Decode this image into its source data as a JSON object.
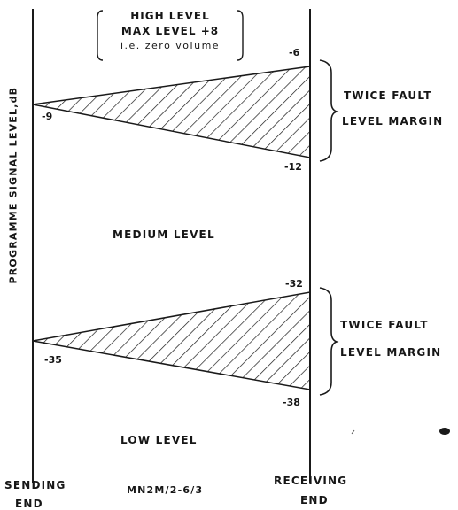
{
  "high_level": {
    "line1": "HIGH LEVEL",
    "line2": "MAX LEVEL +8",
    "line3": "i.e. zero volume"
  },
  "medium_level": "MEDIUM LEVEL",
  "low_level": "LOW LEVEL",
  "axis_label": "PROGRAMME SIGNAL LEVEL,dB",
  "upper_band": {
    "start": "-9",
    "top": "-6",
    "bottom": "-12"
  },
  "lower_band": {
    "start": "-35",
    "top": "-32",
    "bottom": "-38"
  },
  "margin_upper": {
    "line1": "TWICE FAULT",
    "line2": "LEVEL MARGIN"
  },
  "margin_lower": {
    "line1": "TWICE FAULT",
    "line2": "LEVEL MARGIN"
  },
  "sending": {
    "line1": "SENDING",
    "line2": "END"
  },
  "receiving": {
    "line1": "RECEIVING",
    "line2": "END"
  },
  "figure_ref": "MN2M/2-6/3"
}
